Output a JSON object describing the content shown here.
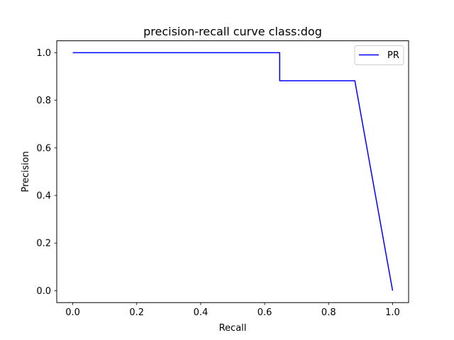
{
  "chart_data": {
    "type": "line",
    "title": "precision-recall curve class:dog",
    "xlabel": "Recall",
    "ylabel": "Precision",
    "xlim": [
      -0.05,
      1.05
    ],
    "ylim": [
      -0.05,
      1.05
    ],
    "xticks": [
      0.0,
      0.2,
      0.4,
      0.6,
      0.8,
      1.0
    ],
    "xtick_labels": [
      "0.0",
      "0.2",
      "0.4",
      "0.6",
      "0.8",
      "1.0"
    ],
    "yticks": [
      0.0,
      0.2,
      0.4,
      0.6,
      0.8,
      1.0
    ],
    "ytick_labels": [
      "0.0",
      "0.2",
      "0.4",
      "0.6",
      "0.8",
      "1.0"
    ],
    "grid": false,
    "legend_position": "top-right",
    "series": [
      {
        "name": "PR",
        "color": "#0000ff",
        "points": [
          [
            0.0,
            1.0
          ],
          [
            0.647,
            1.0
          ],
          [
            0.647,
            0.882
          ],
          [
            0.882,
            0.882
          ],
          [
            1.0,
            0.0
          ]
        ]
      }
    ]
  }
}
